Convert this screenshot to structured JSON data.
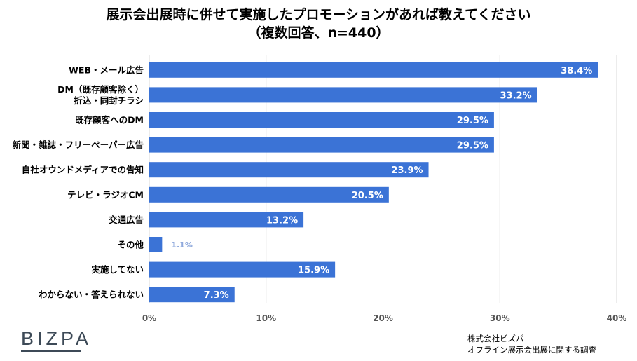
{
  "header": {
    "title_line1": "展示会出展時に併せて実施したプロモーションがあれば教えてください",
    "title_line2": "（複数回答、n=440）"
  },
  "chart_data": {
    "type": "bar",
    "orientation": "horizontal",
    "title": "展示会出展時に併せて実施したプロモーションがあれば教えてください（複数回答、n=440）",
    "categories": [
      [
        "WEB・メール広告"
      ],
      [
        "DM（既存顧客除く）",
        "折込・同封チラシ"
      ],
      [
        "既存顧客へのDM"
      ],
      [
        "新聞・雑誌・フリーペーパー広告"
      ],
      [
        "自社オウンドメディアでの告知"
      ],
      [
        "テレビ・ラジオCM"
      ],
      [
        "交通広告"
      ],
      [
        "その他"
      ],
      [
        "実施してない"
      ],
      [
        "わからない・答えられない"
      ]
    ],
    "values": [
      38.4,
      33.2,
      29.5,
      29.5,
      23.9,
      20.5,
      13.2,
      1.1,
      15.9,
      7.3
    ],
    "value_labels": [
      "38.4%",
      "33.2%",
      "29.5%",
      "29.5%",
      "23.9%",
      "20.5%",
      "13.2%",
      "1.1%",
      "15.9%",
      "7.3%"
    ],
    "xlim": [
      0,
      40
    ],
    "x_ticks": [
      0,
      10,
      20,
      30,
      40
    ],
    "x_tick_labels": [
      "0%",
      "10%",
      "20%",
      "30%",
      "40%"
    ],
    "grid": true,
    "xlabel": "",
    "ylabel": "",
    "bar_color": "#3b73d6",
    "gridline_color": "#d9d9d9"
  },
  "footer": {
    "logo": "BIZPA",
    "source_line1": "株式会社ビズパ",
    "source_line2": "オフライン展示会出展に関する調査"
  }
}
